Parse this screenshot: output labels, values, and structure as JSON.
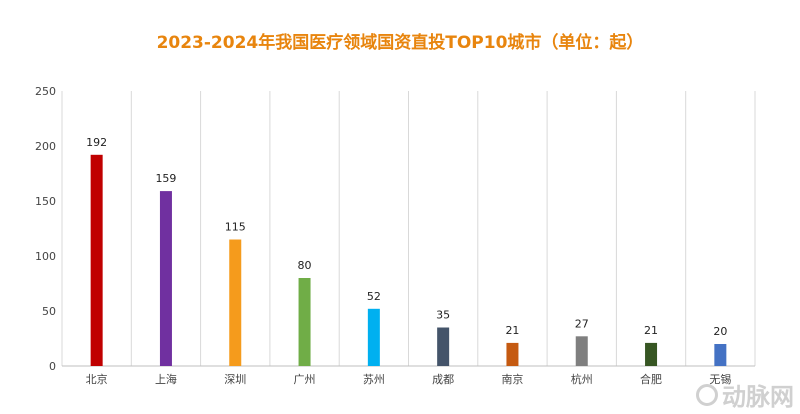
{
  "chart_data": {
    "type": "bar",
    "title": "2023-2024年我国医疗领域国资直投TOP10城市（单位：起）",
    "categories": [
      "北京",
      "上海",
      "深圳",
      "广州",
      "苏州",
      "成都",
      "南京",
      "杭州",
      "合肥",
      "无锡"
    ],
    "values": [
      192,
      159,
      115,
      80,
      52,
      35,
      21,
      27,
      21,
      20
    ],
    "colors": [
      "#C00000",
      "#7030A0",
      "#F59B1C",
      "#70AD47",
      "#00B0F0",
      "#44546A",
      "#C55A11",
      "#7F7F7F",
      "#375623",
      "#4472C4"
    ],
    "ylim": [
      0,
      250
    ],
    "yticks": [
      0,
      50,
      100,
      150,
      200,
      250
    ],
    "grid": "vertical category separators",
    "legend": "none"
  },
  "watermark": {
    "text": "动脉网"
  }
}
